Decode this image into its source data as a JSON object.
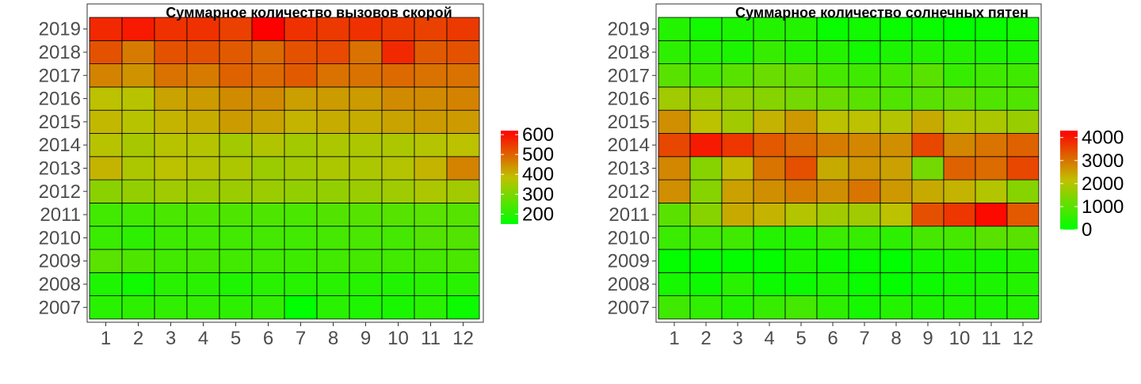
{
  "chart_data": [
    {
      "type": "heatmap",
      "title": "Суммарное количество вызовов скорой",
      "xlabel": "",
      "ylabel": "",
      "x_categories": [
        "1",
        "2",
        "3",
        "4",
        "5",
        "6",
        "7",
        "8",
        "9",
        "10",
        "11",
        "12"
      ],
      "y_categories": [
        "2007",
        "2008",
        "2009",
        "2010",
        "2011",
        "2012",
        "2013",
        "2014",
        "2015",
        "2016",
        "2017",
        "2018",
        "2019"
      ],
      "values": [
        [
          200,
          205,
          210,
          210,
          205,
          210,
          150,
          200,
          185,
          180,
          200,
          165
        ],
        [
          185,
          170,
          200,
          200,
          185,
          200,
          195,
          200,
          195,
          190,
          200,
          200
        ],
        [
          260,
          245,
          230,
          235,
          230,
          230,
          225,
          230,
          235,
          230,
          235,
          240
        ],
        [
          220,
          205,
          225,
          230,
          230,
          235,
          230,
          235,
          240,
          235,
          250,
          250
        ],
        [
          230,
          230,
          240,
          245,
          245,
          245,
          240,
          250,
          255,
          255,
          260,
          255
        ],
        [
          320,
          330,
          345,
          340,
          340,
          340,
          330,
          330,
          340,
          345,
          360,
          350
        ],
        [
          400,
          360,
          380,
          370,
          360,
          340,
          350,
          360,
          360,
          370,
          400,
          460
        ],
        [
          375,
          355,
          375,
          370,
          350,
          365,
          350,
          360,
          360,
          360,
          370,
          380
        ],
        [
          395,
          375,
          400,
          410,
          430,
          420,
          400,
          410,
          410,
          420,
          430,
          430
        ],
        [
          380,
          375,
          420,
          430,
          450,
          450,
          425,
          430,
          430,
          450,
          450,
          460
        ],
        [
          460,
          440,
          480,
          470,
          500,
          490,
          510,
          480,
          480,
          490,
          480,
          480
        ],
        [
          520,
          470,
          520,
          520,
          510,
          490,
          520,
          530,
          480,
          570,
          510,
          520
        ],
        [
          570,
          590,
          560,
          560,
          540,
          620,
          560,
          550,
          560,
          550,
          540,
          550
        ]
      ],
      "colorbar": {
        "min": 150,
        "max": 620,
        "ticks": [
          200,
          300,
          400,
          500,
          600
        ],
        "low_color": "#00FF00",
        "mid_color": "#C0C000",
        "high_color": "#FF0000"
      },
      "legend_position": "right"
    },
    {
      "type": "heatmap",
      "title": "Суммарное количество солнечных пятен",
      "xlabel": "",
      "ylabel": "",
      "x_categories": [
        "1",
        "2",
        "3",
        "4",
        "5",
        "6",
        "7",
        "8",
        "9",
        "10",
        "11",
        "12"
      ],
      "y_categories": [
        "2007",
        "2008",
        "2009",
        "2010",
        "2011",
        "2012",
        "2013",
        "2014",
        "2015",
        "2016",
        "2017",
        "2018",
        "2019"
      ],
      "values": [
        [
          700,
          550,
          400,
          600,
          750,
          500,
          250,
          400,
          300,
          350,
          300,
          400
        ],
        [
          250,
          150,
          450,
          150,
          150,
          300,
          100,
          50,
          150,
          250,
          300,
          400
        ],
        [
          50,
          50,
          50,
          50,
          300,
          150,
          100,
          0,
          250,
          300,
          250,
          400
        ],
        [
          650,
          750,
          700,
          400,
          400,
          650,
          600,
          500,
          800,
          800,
          1000,
          1000
        ],
        [
          1000,
          1500,
          2400,
          2300,
          2000,
          1800,
          1800,
          2100,
          3400,
          3700,
          4200,
          3300
        ],
        [
          2700,
          1500,
          2500,
          2700,
          2900,
          2700,
          3000,
          2600,
          2400,
          2300,
          2000,
          1500
        ],
        [
          2800,
          1500,
          2200,
          3000,
          3400,
          2400,
          2600,
          2500,
          1300,
          3200,
          3100,
          3500
        ],
        [
          3500,
          4000,
          3700,
          3300,
          3100,
          2900,
          2800,
          2700,
          3500,
          2800,
          3000,
          3200
        ],
        [
          2700,
          2100,
          1800,
          2300,
          2600,
          2100,
          2100,
          2000,
          2400,
          2000,
          1900,
          1700
        ],
        [
          1800,
          1700,
          1600,
          1500,
          1300,
          1200,
          1000,
          900,
          1000,
          1100,
          900,
          900
        ],
        [
          1000,
          800,
          1000,
          1200,
          1100,
          800,
          700,
          800,
          1000,
          600,
          700,
          700
        ],
        [
          500,
          400,
          300,
          600,
          400,
          400,
          200,
          300,
          400,
          400,
          300,
          300
        ],
        [
          400,
          200,
          300,
          400,
          400,
          100,
          200,
          100,
          100,
          0,
          100,
          200
        ]
      ],
      "colorbar": {
        "min": 0,
        "max": 4300,
        "ticks": [
          0,
          1000,
          2000,
          3000,
          4000
        ],
        "low_color": "#00FF00",
        "mid_color": "#C0C000",
        "high_color": "#FF0000"
      },
      "legend_position": "right"
    }
  ]
}
